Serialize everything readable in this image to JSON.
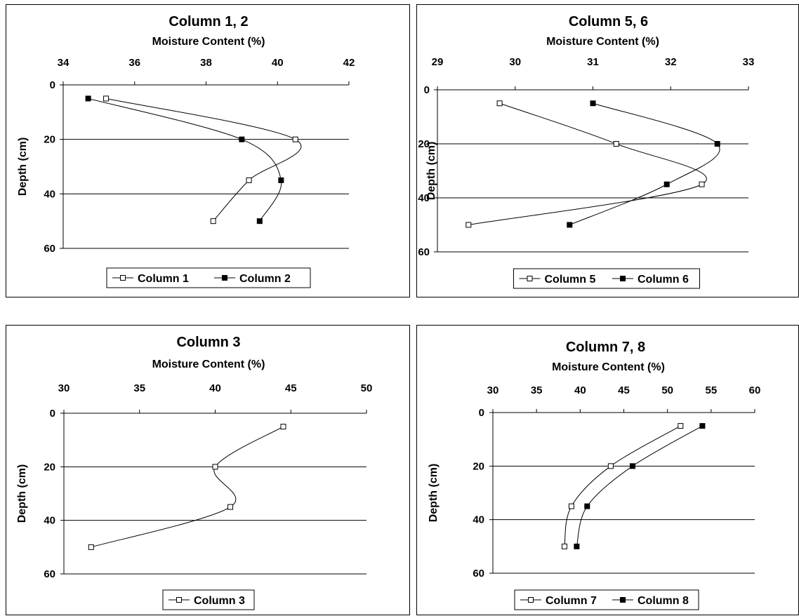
{
  "chart_data": [
    {
      "type": "line",
      "title": "Column 1, 2",
      "xlabel": "Moisture Content (%)",
      "ylabel": "Depth (cm)",
      "xlim": [
        34,
        42
      ],
      "xticks": [
        "34",
        "36",
        "38",
        "40",
        "42"
      ],
      "ylim": [
        0,
        60
      ],
      "yticks": [
        "0",
        "20",
        "40",
        "60"
      ],
      "x_axis_position": "top",
      "y_axis_inverted": true,
      "grid": "horizontal",
      "legend": "bottom",
      "series": [
        {
          "name": "Column 1",
          "marker": "open-square",
          "x": [
            35.2,
            40.5,
            39.2,
            38.2
          ],
          "y": [
            5,
            20,
            35,
            50
          ]
        },
        {
          "name": "Column 2",
          "marker": "filled-square",
          "x": [
            34.7,
            39.0,
            40.1,
            39.5
          ],
          "y": [
            5,
            20,
            35,
            50
          ]
        }
      ]
    },
    {
      "type": "line",
      "title": "Column 5, 6",
      "xlabel": "Moisture Content (%)",
      "ylabel": "Depth (cm)",
      "xlim": [
        29,
        33
      ],
      "xticks": [
        "29",
        "30",
        "31",
        "32",
        "33"
      ],
      "ylim": [
        0,
        60
      ],
      "yticks": [
        "0",
        "20",
        "40",
        "60"
      ],
      "x_axis_position": "top",
      "y_axis_inverted": true,
      "grid": "horizontal",
      "legend": "bottom",
      "series": [
        {
          "name": "Column 5",
          "marker": "open-square",
          "x": [
            29.8,
            31.3,
            32.4,
            29.4
          ],
          "y": [
            5,
            20,
            35,
            50
          ]
        },
        {
          "name": "Column 6",
          "marker": "filled-square",
          "x": [
            31.0,
            32.6,
            31.95,
            30.7
          ],
          "y": [
            5,
            20,
            35,
            50
          ]
        }
      ]
    },
    {
      "type": "line",
      "title": "Column 3",
      "xlabel": "Moisture Content (%)",
      "ylabel": "Depth (cm)",
      "xlim": [
        30,
        50
      ],
      "xticks": [
        "30",
        "35",
        "40",
        "45",
        "50"
      ],
      "ylim": [
        0,
        60
      ],
      "yticks": [
        "0",
        "20",
        "40",
        "60"
      ],
      "x_axis_position": "top",
      "y_axis_inverted": true,
      "grid": "horizontal",
      "legend": "bottom",
      "series": [
        {
          "name": "Column 3",
          "marker": "open-square",
          "x": [
            44.5,
            40.0,
            41.0,
            31.8
          ],
          "y": [
            5,
            20,
            35,
            50
          ]
        }
      ]
    },
    {
      "type": "line",
      "title": "Column 7, 8",
      "xlabel": "Moisture Content (%)",
      "ylabel": "Depth (cm)",
      "xlim": [
        30,
        60
      ],
      "xticks": [
        "30",
        "35",
        "40",
        "45",
        "50",
        "55",
        "60"
      ],
      "ylim": [
        0,
        60
      ],
      "yticks": [
        "0",
        "20",
        "40",
        "60"
      ],
      "x_axis_position": "top",
      "y_axis_inverted": true,
      "grid": "horizontal",
      "legend": "bottom",
      "series": [
        {
          "name": "Column 7",
          "marker": "open-square",
          "x": [
            51.5,
            43.5,
            39.0,
            38.2
          ],
          "y": [
            5,
            20,
            35,
            50
          ]
        },
        {
          "name": "Column 8",
          "marker": "filled-square",
          "x": [
            54.0,
            46.0,
            40.8,
            39.6
          ],
          "y": [
            5,
            20,
            35,
            50
          ]
        }
      ]
    }
  ]
}
